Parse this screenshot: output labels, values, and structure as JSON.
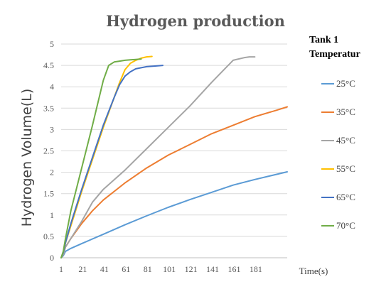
{
  "chart_data": {
    "type": "line",
    "title": "Hydrogen production",
    "xlabel": "Time(s)",
    "ylabel": "Hydrogen Volume(L)",
    "xlim": [
      1,
      210
    ],
    "ylim": [
      0,
      5
    ],
    "x_ticks": [
      "1",
      "21",
      "41",
      "61",
      "81",
      "101",
      "121",
      "141",
      "161",
      "181"
    ],
    "x_tick_values": [
      1,
      21,
      41,
      61,
      81,
      101,
      121,
      141,
      161,
      181
    ],
    "y_ticks": [
      "0",
      "0.5",
      "1",
      "1.5",
      "2",
      "2.5",
      "3",
      "3.5",
      "4",
      "4.5",
      "5"
    ],
    "y_tick_values": [
      0,
      0.5,
      1,
      1.5,
      2,
      2.5,
      3,
      3.5,
      4,
      4.5,
      5
    ],
    "grid": "horizontal",
    "legend_title": [
      "Tank 1",
      "Temperatur"
    ],
    "legend_position": "right",
    "series": [
      {
        "name": "25°C",
        "color": "#5b9bd5",
        "x": [
          1,
          3,
          5,
          10,
          20,
          40,
          60,
          80,
          100,
          120,
          140,
          160,
          180,
          210
        ],
        "y": [
          0,
          0.05,
          0.15,
          0.22,
          0.33,
          0.55,
          0.77,
          0.98,
          1.18,
          1.36,
          1.53,
          1.7,
          1.83,
          2.01
        ]
      },
      {
        "name": "35°C",
        "color": "#ed7d31",
        "x": [
          1,
          3,
          5,
          10,
          20,
          30,
          40,
          60,
          80,
          100,
          120,
          140,
          160,
          180,
          200,
          210
        ],
        "y": [
          0,
          0.08,
          0.25,
          0.45,
          0.8,
          1.1,
          1.35,
          1.75,
          2.1,
          2.4,
          2.65,
          2.9,
          3.1,
          3.3,
          3.45,
          3.53
        ]
      },
      {
        "name": "45°C",
        "color": "#a5a5a5",
        "x": [
          1,
          3,
          5,
          10,
          20,
          30,
          40,
          60,
          80,
          100,
          120,
          140,
          160,
          170,
          175,
          180
        ],
        "y": [
          0,
          0.08,
          0.25,
          0.45,
          0.85,
          1.3,
          1.6,
          2.05,
          2.55,
          3.05,
          3.55,
          4.1,
          4.62,
          4.68,
          4.7,
          4.7
        ]
      },
      {
        "name": "55°C",
        "color": "#ffc000",
        "x": [
          1,
          3,
          5,
          10,
          20,
          30,
          40,
          50,
          55,
          60,
          65,
          70,
          75,
          80,
          85
        ],
        "y": [
          0,
          0.12,
          0.35,
          0.75,
          1.55,
          2.3,
          3.05,
          3.75,
          4.1,
          4.4,
          4.55,
          4.62,
          4.67,
          4.7,
          4.71
        ]
      },
      {
        "name": "65°C",
        "color": "#4472c4",
        "x": [
          1,
          3,
          5,
          10,
          20,
          30,
          40,
          50,
          55,
          60,
          65,
          70,
          80,
          90,
          95
        ],
        "y": [
          0,
          0.12,
          0.35,
          0.8,
          1.6,
          2.35,
          3.1,
          3.75,
          4.05,
          4.25,
          4.35,
          4.42,
          4.47,
          4.49,
          4.5
        ]
      },
      {
        "name": "70°C",
        "color": "#70ad47",
        "x": [
          1,
          3,
          5,
          10,
          20,
          30,
          40,
          45,
          50,
          55,
          60,
          65,
          70,
          75
        ],
        "y": [
          0,
          0.15,
          0.45,
          1.1,
          2.1,
          3.1,
          4.15,
          4.5,
          4.58,
          4.6,
          4.62,
          4.63,
          4.64,
          4.65
        ]
      }
    ]
  }
}
